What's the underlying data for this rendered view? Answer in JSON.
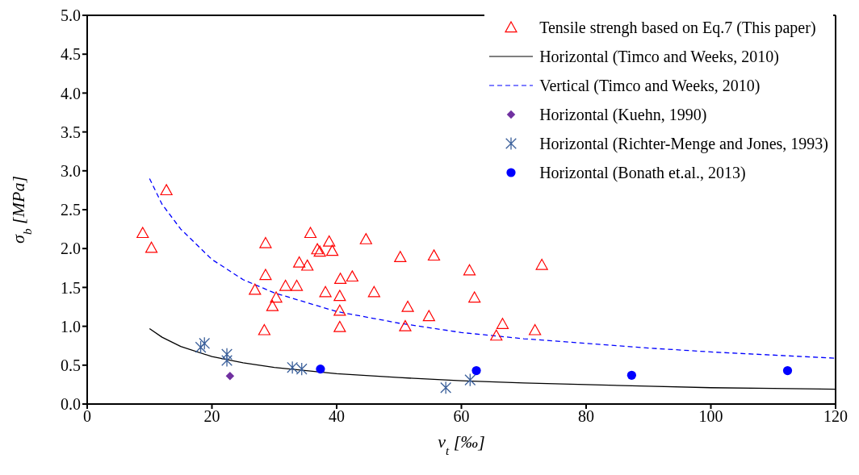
{
  "chart_data": {
    "type": "scatter",
    "xlabel": "v$_{t}$ [‰]",
    "ylabel": "σ$_{b}$ [MPa]",
    "xlim": [
      0,
      120
    ],
    "xticks": [
      0,
      20,
      40,
      60,
      80,
      100,
      120
    ],
    "ylim": [
      0,
      5
    ],
    "yticks": [
      {
        "value": 0,
        "label": "0.0"
      },
      {
        "value": 0.5,
        "label": "0.5"
      },
      {
        "value": 1,
        "label": "1.0"
      },
      {
        "value": 1.5,
        "label": "1.5"
      },
      {
        "value": 2,
        "label": "2.0"
      },
      {
        "value": 2.5,
        "label": "2.5"
      },
      {
        "value": 3,
        "label": "3.0"
      },
      {
        "value": 3.5,
        "label": "3.5"
      },
      {
        "value": 4,
        "label": "4.0"
      },
      {
        "value": 4.5,
        "label": "4.5"
      },
      {
        "value": 5,
        "label": "5.0"
      }
    ],
    "grid": false,
    "legend": "top right",
    "series": [
      {
        "name": "Tensile strengh based on Eq.7 (This paper)",
        "marker": "triangle",
        "color": "#ff0000",
        "x": [
          8.9,
          10.3,
          12.7,
          26.9,
          28.4,
          28.6,
          28.6,
          29.7,
          30.3,
          31.8,
          33.6,
          34,
          35.3,
          35.8,
          36.9,
          37.3,
          38.2,
          38.8,
          39.3,
          40.6,
          40.5,
          40.5,
          40.5,
          42.5,
          44.7,
          46,
          50.2,
          51,
          51.4,
          54.8,
          55.6,
          61.3,
          62.1,
          65.6,
          66.6,
          71.8,
          72.9
        ],
        "values": [
          2.2,
          2.01,
          2.75,
          1.47,
          0.95,
          2.07,
          1.66,
          1.26,
          1.37,
          1.52,
          1.52,
          1.82,
          1.78,
          2.2,
          1.99,
          1.96,
          1.44,
          2.09,
          1.97,
          1.61,
          1.39,
          1.2,
          0.99,
          1.64,
          2.12,
          1.44,
          1.89,
          1.0,
          1.25,
          1.13,
          1.91,
          1.72,
          1.37,
          0.88,
          1.03,
          0.95,
          1.79
        ]
      },
      {
        "name": "Horizontal (Timco and Weeks, 2010)",
        "type": "line",
        "marker": "none",
        "line_style": "solid",
        "color": "#000000",
        "x": [
          10,
          12,
          15,
          20,
          25,
          30,
          40,
          50,
          60,
          70,
          80,
          90,
          100,
          110,
          120
        ],
        "values": [
          0.97,
          0.86,
          0.74,
          0.61,
          0.53,
          0.47,
          0.39,
          0.34,
          0.3,
          0.27,
          0.25,
          0.23,
          0.21,
          0.2,
          0.19
        ]
      },
      {
        "name": "Vertical (Timco and Weeks, 2010)",
        "type": "line",
        "marker": "none",
        "line_style": "dashed",
        "color": "#0000ff",
        "x": [
          10,
          12,
          15,
          20,
          25,
          30,
          40,
          50,
          60,
          70,
          80,
          90,
          100,
          110,
          120
        ],
        "values": [
          2.9,
          2.57,
          2.25,
          1.86,
          1.6,
          1.43,
          1.19,
          1.04,
          0.92,
          0.84,
          0.78,
          0.72,
          0.67,
          0.63,
          0.59
        ]
      },
      {
        "name": "Horizontal (Kuehn, 1990)",
        "marker": "diamond",
        "color": "#7030a0",
        "x": [
          22.9
        ],
        "values": [
          0.36
        ]
      },
      {
        "name": "Horizontal (Richter-Menge and Jones, 1993)",
        "marker": "cross",
        "color": "#3a5f9a",
        "x": [
          18.2,
          18.8,
          22.4,
          22.4,
          32.9,
          34.4,
          57.5,
          61.4
        ],
        "values": [
          0.73,
          0.78,
          0.64,
          0.56,
          0.47,
          0.45,
          0.21,
          0.31
        ]
      },
      {
        "name": "Horizontal (Bonath et.al., 2013)",
        "marker": "circle",
        "color": "#0000ff",
        "x": [
          37.4,
          62.4,
          87.3,
          112.3
        ],
        "values": [
          0.45,
          0.43,
          0.37,
          0.43
        ]
      }
    ]
  }
}
